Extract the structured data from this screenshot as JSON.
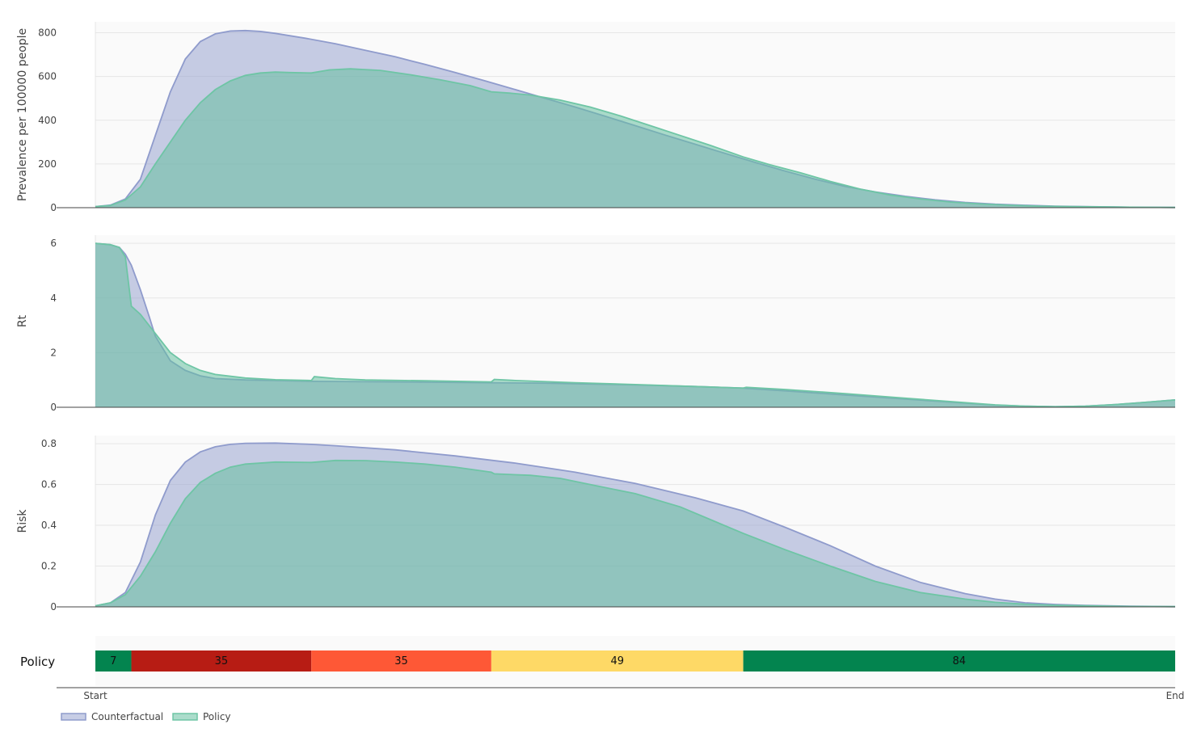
{
  "chart_data": [
    {
      "type": "area",
      "ylabel": "Prevalence per 100000 people",
      "ylim": [
        0,
        850
      ],
      "yticks": [
        0,
        200,
        400,
        600,
        800
      ],
      "grid": true,
      "series": [
        {
          "name": "Counterfactual",
          "color": "#8f9bcc",
          "points": [
            [
              0,
              5
            ],
            [
              5,
              12
            ],
            [
              10,
              40
            ],
            [
              15,
              130
            ],
            [
              20,
              330
            ],
            [
              25,
              530
            ],
            [
              30,
              680
            ],
            [
              35,
              760
            ],
            [
              40,
              795
            ],
            [
              45,
              808
            ],
            [
              50,
              810
            ],
            [
              55,
              806
            ],
            [
              60,
              797
            ],
            [
              70,
              775
            ],
            [
              80,
              750
            ],
            [
              90,
              720
            ],
            [
              100,
              690
            ],
            [
              110,
              655
            ],
            [
              120,
              618
            ],
            [
              130,
              580
            ],
            [
              140,
              540
            ],
            [
              150,
              500
            ],
            [
              160,
              460
            ],
            [
              170,
              418
            ],
            [
              180,
              375
            ],
            [
              190,
              332
            ],
            [
              200,
              290
            ],
            [
              210,
              248
            ],
            [
              220,
              207
            ],
            [
              230,
              167
            ],
            [
              240,
              130
            ],
            [
              250,
              97
            ],
            [
              260,
              72
            ],
            [
              270,
              52
            ],
            [
              280,
              36
            ],
            [
              290,
              24
            ],
            [
              300,
              16
            ],
            [
              310,
              11
            ],
            [
              320,
              7
            ],
            [
              330,
              5
            ],
            [
              340,
              3
            ],
            [
              350,
              2
            ],
            [
              360,
              1
            ]
          ]
        },
        {
          "name": "Policy",
          "color": "#6ec5a5",
          "points": [
            [
              0,
              5
            ],
            [
              5,
              10
            ],
            [
              10,
              35
            ],
            [
              15,
              95
            ],
            [
              20,
              200
            ],
            [
              25,
              300
            ],
            [
              30,
              400
            ],
            [
              35,
              480
            ],
            [
              40,
              540
            ],
            [
              45,
              580
            ],
            [
              50,
              605
            ],
            [
              55,
              616
            ],
            [
              60,
              620
            ],
            [
              65,
              618
            ],
            [
              72,
              616
            ],
            [
              78,
              630
            ],
            [
              85,
              635
            ],
            [
              95,
              628
            ],
            [
              105,
              608
            ],
            [
              115,
              585
            ],
            [
              125,
              558
            ],
            [
              132,
              530
            ],
            [
              138,
              524
            ],
            [
              145,
              515
            ],
            [
              155,
              492
            ],
            [
              165,
              460
            ],
            [
              175,
              420
            ],
            [
              185,
              375
            ],
            [
              195,
              330
            ],
            [
              205,
              285
            ],
            [
              216,
              232
            ],
            [
              225,
              196
            ],
            [
              235,
              160
            ],
            [
              245,
              120
            ],
            [
              255,
              85
            ],
            [
              265,
              58
            ],
            [
              275,
              40
            ],
            [
              285,
              26
            ],
            [
              295,
              17
            ],
            [
              305,
              11
            ],
            [
              315,
              7
            ],
            [
              325,
              5
            ],
            [
              340,
              3
            ],
            [
              350,
              2
            ],
            [
              360,
              1
            ]
          ]
        }
      ]
    },
    {
      "type": "area",
      "ylabel": "Rt",
      "ylim": [
        0,
        6.3
      ],
      "yticks": [
        0,
        2,
        4,
        6
      ],
      "grid": true,
      "series": [
        {
          "name": "Counterfactual",
          "color": "#8f9bcc",
          "points": [
            [
              0,
              6
            ],
            [
              5,
              5.95
            ],
            [
              8,
              5.85
            ],
            [
              10,
              5.6
            ],
            [
              12,
              5.2
            ],
            [
              15,
              4.3
            ],
            [
              18,
              3.3
            ],
            [
              20,
              2.6
            ],
            [
              25,
              1.7
            ],
            [
              30,
              1.35
            ],
            [
              35,
              1.15
            ],
            [
              40,
              1.05
            ],
            [
              50,
              1
            ],
            [
              60,
              0.98
            ],
            [
              72,
              0.95
            ],
            [
              100,
              0.93
            ],
            [
              130,
              0.9
            ],
            [
              150,
              0.88
            ],
            [
              180,
              0.82
            ],
            [
              200,
              0.76
            ],
            [
              216,
              0.7
            ],
            [
              230,
              0.6
            ],
            [
              250,
              0.45
            ],
            [
              270,
              0.3
            ],
            [
              290,
              0.15
            ],
            [
              300,
              0.08
            ],
            [
              310,
              0.04
            ],
            [
              320,
              0.02
            ],
            [
              330,
              0.04
            ],
            [
              340,
              0.1
            ],
            [
              350,
              0.18
            ],
            [
              360,
              0.27
            ]
          ]
        },
        {
          "name": "Policy",
          "color": "#6ec5a5",
          "points": [
            [
              0,
              6
            ],
            [
              5,
              5.95
            ],
            [
              8,
              5.85
            ],
            [
              10,
              5.5
            ],
            [
              12,
              3.7
            ],
            [
              15,
              3.4
            ],
            [
              20,
              2.7
            ],
            [
              25,
              2
            ],
            [
              30,
              1.6
            ],
            [
              35,
              1.35
            ],
            [
              40,
              1.2
            ],
            [
              50,
              1.07
            ],
            [
              60,
              1.01
            ],
            [
              72,
              0.98
            ],
            [
              73,
              1.12
            ],
            [
              80,
              1.05
            ],
            [
              90,
              1
            ],
            [
              110,
              0.97
            ],
            [
              132,
              0.93
            ],
            [
              133,
              1.02
            ],
            [
              140,
              0.98
            ],
            [
              160,
              0.9
            ],
            [
              180,
              0.83
            ],
            [
              200,
              0.76
            ],
            [
              216,
              0.7
            ],
            [
              217,
              0.73
            ],
            [
              230,
              0.65
            ],
            [
              250,
              0.5
            ],
            [
              270,
              0.33
            ],
            [
              290,
              0.17
            ],
            [
              300,
              0.09
            ],
            [
              310,
              0.04
            ],
            [
              320,
              0.02
            ],
            [
              330,
              0.04
            ],
            [
              340,
              0.1
            ],
            [
              350,
              0.18
            ],
            [
              360,
              0.27
            ]
          ]
        }
      ]
    },
    {
      "type": "area",
      "ylabel": "Risk",
      "ylim": [
        0,
        0.84
      ],
      "yticks": [
        0,
        0.2,
        0.4,
        0.6,
        0.8
      ],
      "grid": true,
      "series": [
        {
          "name": "Counterfactual",
          "color": "#8f9bcc",
          "points": [
            [
              0,
              0.005
            ],
            [
              5,
              0.02
            ],
            [
              10,
              0.07
            ],
            [
              15,
              0.22
            ],
            [
              20,
              0.45
            ],
            [
              25,
              0.62
            ],
            [
              30,
              0.71
            ],
            [
              35,
              0.76
            ],
            [
              40,
              0.785
            ],
            [
              45,
              0.797
            ],
            [
              50,
              0.802
            ],
            [
              60,
              0.803
            ],
            [
              72,
              0.797
            ],
            [
              80,
              0.79
            ],
            [
              100,
              0.77
            ],
            [
              120,
              0.74
            ],
            [
              140,
              0.705
            ],
            [
              160,
              0.66
            ],
            [
              180,
              0.605
            ],
            [
              200,
              0.535
            ],
            [
              216,
              0.47
            ],
            [
              230,
              0.39
            ],
            [
              245,
              0.3
            ],
            [
              260,
              0.2
            ],
            [
              275,
              0.12
            ],
            [
              290,
              0.065
            ],
            [
              300,
              0.038
            ],
            [
              310,
              0.02
            ],
            [
              320,
              0.012
            ],
            [
              330,
              0.007
            ],
            [
              345,
              0.003
            ],
            [
              360,
              0.001
            ]
          ]
        },
        {
          "name": "Policy",
          "color": "#6ec5a5",
          "points": [
            [
              0,
              0.005
            ],
            [
              5,
              0.02
            ],
            [
              10,
              0.06
            ],
            [
              15,
              0.15
            ],
            [
              20,
              0.27
            ],
            [
              25,
              0.41
            ],
            [
              30,
              0.53
            ],
            [
              35,
              0.61
            ],
            [
              40,
              0.655
            ],
            [
              45,
              0.685
            ],
            [
              50,
              0.7
            ],
            [
              60,
              0.71
            ],
            [
              72,
              0.708
            ],
            [
              80,
              0.718
            ],
            [
              90,
              0.717
            ],
            [
              100,
              0.71
            ],
            [
              110,
              0.7
            ],
            [
              120,
              0.685
            ],
            [
              132,
              0.66
            ],
            [
              133,
              0.652
            ],
            [
              145,
              0.645
            ],
            [
              155,
              0.63
            ],
            [
              165,
              0.6
            ],
            [
              180,
              0.555
            ],
            [
              195,
              0.49
            ],
            [
              216,
              0.36
            ],
            [
              230,
              0.28
            ],
            [
              245,
              0.2
            ],
            [
              260,
              0.125
            ],
            [
              275,
              0.07
            ],
            [
              290,
              0.038
            ],
            [
              300,
              0.022
            ],
            [
              310,
              0.013
            ],
            [
              320,
              0.008
            ],
            [
              330,
              0.005
            ],
            [
              345,
              0.002
            ],
            [
              360,
              0.001
            ]
          ]
        }
      ]
    }
  ],
  "policy": {
    "title": "Policy",
    "segments": [
      {
        "label": "7",
        "days": 12,
        "color": "#03844f"
      },
      {
        "label": "35",
        "days": 60,
        "color": "#b71c14"
      },
      {
        "label": "35",
        "days": 60,
        "color": "#fe5836"
      },
      {
        "label": "49",
        "days": 84,
        "color": "#fed966"
      },
      {
        "label": "84",
        "days": 144,
        "color": "#03844f"
      }
    ]
  },
  "x_axis": {
    "start_label": "Start",
    "end_label": "End",
    "range": [
      0,
      360
    ]
  },
  "legend": {
    "placement": "bottom-left",
    "items": [
      {
        "label": "Counterfactual",
        "color": "#8f9bcc"
      },
      {
        "label": "Policy",
        "color": "#6ec5a5"
      }
    ]
  }
}
